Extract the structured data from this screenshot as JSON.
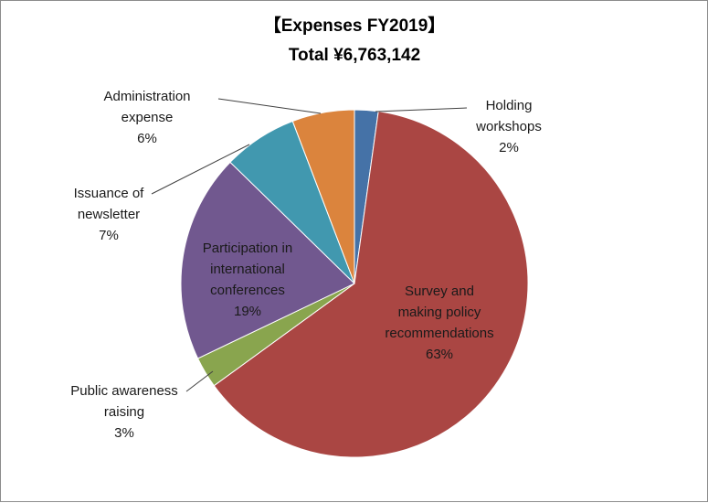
{
  "chart_data": {
    "type": "pie",
    "title": "【Expenses FY2019】",
    "subtitle": "Total ¥6,763,142",
    "start": "top, clockwise",
    "slices": [
      {
        "label": [
          "Holding",
          "workshops"
        ],
        "percent_label": "2%",
        "value": 2.2,
        "color": "#4572a7"
      },
      {
        "label": [
          "Survey and",
          "making policy",
          "recommendations"
        ],
        "percent_label": "63%",
        "value": 62.8,
        "color": "#aa4643"
      },
      {
        "label": [
          "Public awareness",
          "raising"
        ],
        "percent_label": "3%",
        "value": 2.9,
        "color": "#89a54e"
      },
      {
        "label": [
          "Participation in",
          "international",
          "conferences"
        ],
        "percent_label": "19%",
        "value": 19.4,
        "color": "#71588f"
      },
      {
        "label": [
          "Issuance of",
          "newsletter"
        ],
        "percent_label": "7%",
        "value": 6.9,
        "color": "#4198af"
      },
      {
        "label": [
          "Administration",
          "expense"
        ],
        "percent_label": "6%",
        "value": 5.8,
        "color": "#db843d"
      }
    ]
  }
}
